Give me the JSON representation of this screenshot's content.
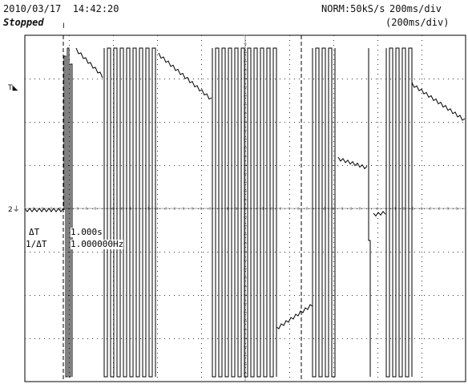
{
  "header": {
    "datetime": "2010/03/17  14:42:20",
    "status": "Stopped",
    "acq_mode": "NORM:50kS/s",
    "timebase": "200ms/div",
    "timebase_zoom": "(200ms/div)"
  },
  "cursor_marker": "I",
  "measurements": {
    "delta_t_label": "ΔT",
    "delta_t_value": "1.000s",
    "inv_delta_t_label": "1/ΔT",
    "inv_delta_t_value": "1.000000Hz"
  },
  "channel_markers": {
    "trigger_marker": "T",
    "ch2_marker": "2"
  },
  "colors": {
    "trace": "#000000",
    "grid": "#333333",
    "background": "#ffffff"
  }
}
